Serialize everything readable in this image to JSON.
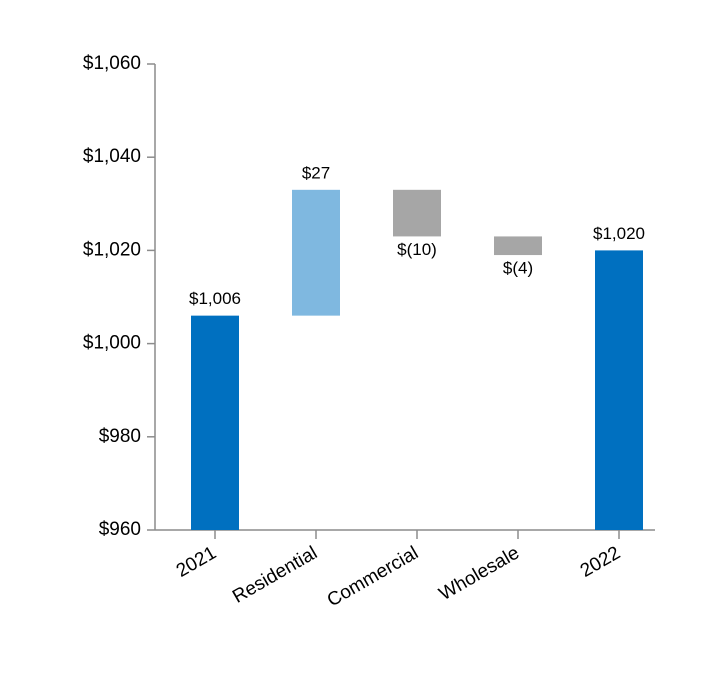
{
  "chart_data": {
    "type": "waterfall",
    "categories": [
      "2021",
      "Residential",
      "Commercial",
      "Wholesale",
      "2022"
    ],
    "values": [
      1006,
      27,
      -10,
      -4,
      1020
    ],
    "value_labels": [
      "$1,006",
      "$27",
      "$(10)",
      "$(4)",
      "$1,020"
    ],
    "measure": [
      "absolute",
      "relative",
      "relative",
      "relative",
      "absolute"
    ],
    "colors": [
      "#0070c0",
      "#7fb8e0",
      "#a6a6a6",
      "#a6a6a6",
      "#0070c0"
    ],
    "ylim": [
      960,
      1060
    ],
    "yticks": [
      {
        "value": 960,
        "label": "$960"
      },
      {
        "value": 980,
        "label": "$980"
      },
      {
        "value": 1000,
        "label": "$1,000"
      },
      {
        "value": 1020,
        "label": "$1,020"
      },
      {
        "value": 1040,
        "label": "$1,040"
      },
      {
        "value": 1060,
        "label": "$1,060"
      }
    ],
    "grid": false
  }
}
